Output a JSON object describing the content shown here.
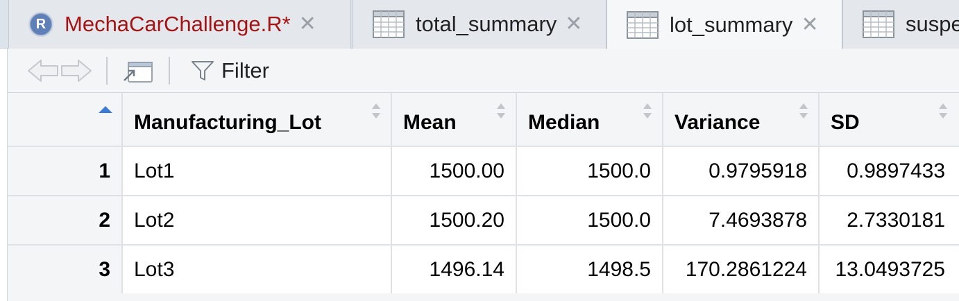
{
  "tabs": [
    {
      "label": "MechaCarChallenge.R*",
      "icon": "r-script-icon",
      "modified": true
    },
    {
      "label": "total_summary",
      "icon": "table-icon"
    },
    {
      "label": "lot_summary",
      "icon": "table-icon",
      "active": true
    },
    {
      "label": "suspe",
      "icon": "table-icon"
    }
  ],
  "toolbar": {
    "filter_label": "Filter"
  },
  "table": {
    "columns": [
      "Manufacturing_Lot",
      "Mean",
      "Median",
      "Variance",
      "SD"
    ],
    "rows": [
      {
        "id": "1",
        "lot": "Lot1",
        "mean": "1500.00",
        "median": "1500.0",
        "variance": "0.9795918",
        "sd": "0.9897433"
      },
      {
        "id": "2",
        "lot": "Lot2",
        "mean": "1500.20",
        "median": "1500.0",
        "variance": "7.4693878",
        "sd": "2.7330181"
      },
      {
        "id": "3",
        "lot": "Lot3",
        "mean": "1496.14",
        "median": "1498.5",
        "variance": "170.2861224",
        "sd": "13.0493725"
      }
    ]
  },
  "colors": {
    "modified_tab_text": "#a31515",
    "sort_indicator": "#3a7bd5"
  }
}
